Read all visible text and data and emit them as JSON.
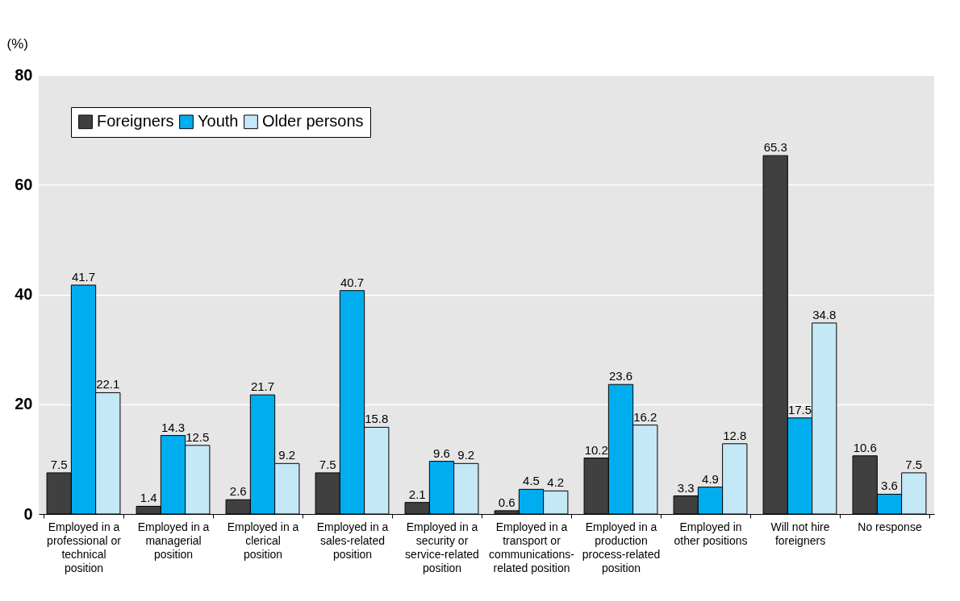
{
  "chart_data": {
    "type": "bar",
    "ylabel": "(%)",
    "categories": [
      "Employed in a professional or technical position",
      "Employed in a managerial position",
      "Employed in a clerical position",
      "Employed in a sales-related position",
      "Employed in a security or service-related position",
      "Employed in a transport or communications-related position",
      "Employed in a production process-related position",
      "Employed in other positions",
      "Will not hire foreigners",
      "No response"
    ],
    "series": [
      {
        "name": "Foreigners",
        "color": "#404040",
        "values": [
          7.5,
          1.4,
          2.6,
          7.5,
          2.1,
          0.6,
          10.2,
          3.3,
          65.3,
          10.6
        ]
      },
      {
        "name": "Youth",
        "color": "#00aeef",
        "values": [
          41.7,
          14.3,
          21.7,
          40.7,
          9.6,
          4.5,
          23.6,
          4.9,
          17.5,
          3.6
        ]
      },
      {
        "name": "Older persons",
        "color": "#c5e8f7",
        "values": [
          22.1,
          12.5,
          9.2,
          15.8,
          9.2,
          4.2,
          16.2,
          12.8,
          34.8,
          7.5
        ]
      }
    ],
    "ylim": [
      0,
      80
    ],
    "yticks": [
      0,
      20,
      40,
      60,
      80
    ],
    "grid": "y",
    "legend": "top left",
    "data_labels": true
  }
}
